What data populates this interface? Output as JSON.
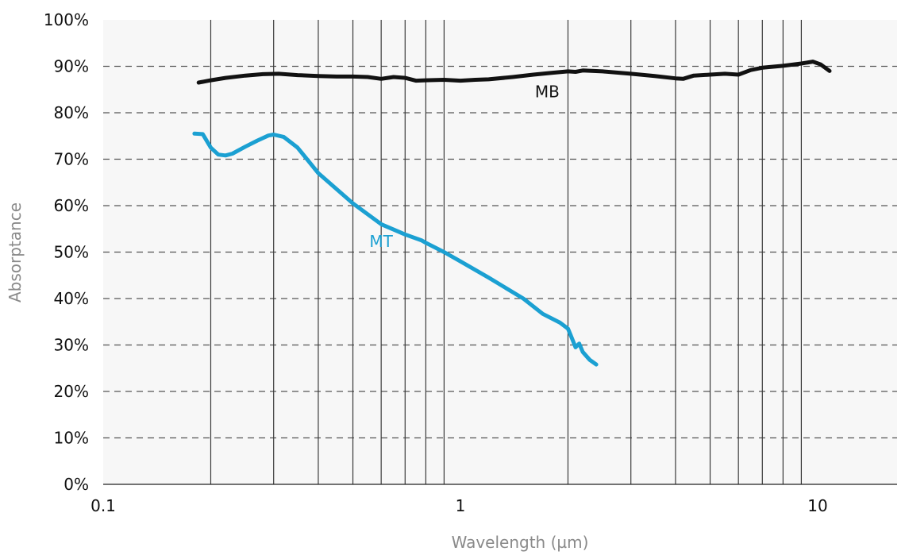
{
  "chart_data": {
    "type": "line",
    "title": "",
    "xlabel": "Wavelength (µm)",
    "ylabel": "Absorptance",
    "x_scale": "log",
    "xlim": [
      0.1,
      20
    ],
    "ylim": [
      0,
      100
    ],
    "x_ticks": [
      0.1,
      1,
      10
    ],
    "x_tick_labels": [
      "0.1",
      "1",
      "10"
    ],
    "y_ticks": [
      0,
      10,
      20,
      30,
      40,
      50,
      60,
      70,
      80,
      90,
      100
    ],
    "y_tick_labels": [
      "0%",
      "10%",
      "20%",
      "30%",
      "40%",
      "50%",
      "60%",
      "70%",
      "80%",
      "90%",
      "100%"
    ],
    "grid": {
      "horizontal": "dashed",
      "vertical_minor": "solid",
      "vertical_lines_at": [
        0.2,
        0.3,
        0.4,
        0.5,
        0.6,
        0.7,
        0.8,
        0.9,
        2,
        3,
        4,
        5,
        6,
        7,
        8,
        9
      ]
    },
    "plot_background": "#f7f7f7",
    "series": [
      {
        "name": "MB",
        "color": "#111111",
        "x": [
          0.185,
          0.2,
          0.22,
          0.25,
          0.28,
          0.31,
          0.35,
          0.4,
          0.45,
          0.5,
          0.55,
          0.6,
          0.65,
          0.7,
          0.75,
          0.8,
          0.9,
          1.0,
          1.1,
          1.2,
          1.4,
          1.6,
          1.8,
          2.0,
          2.1,
          2.2,
          2.5,
          2.8,
          3.0,
          3.5,
          4.0,
          4.2,
          4.5,
          5.0,
          5.5,
          6.0,
          6.5,
          7.0,
          8.0,
          9.0,
          9.7,
          10.2,
          10.8
        ],
        "values": [
          86.5,
          87.0,
          87.5,
          88.0,
          88.3,
          88.4,
          88.1,
          87.9,
          87.8,
          87.8,
          87.7,
          87.3,
          87.7,
          87.5,
          86.9,
          87.0,
          87.1,
          86.9,
          87.1,
          87.2,
          87.7,
          88.2,
          88.6,
          88.9,
          88.8,
          89.1,
          88.9,
          88.6,
          88.4,
          87.9,
          87.4,
          87.3,
          88.0,
          88.2,
          88.4,
          88.2,
          89.2,
          89.7,
          90.1,
          90.6,
          91.0,
          90.4,
          89.0
        ]
      },
      {
        "name": "MT",
        "color": "#1ba0d2",
        "x": [
          0.18,
          0.19,
          0.2,
          0.21,
          0.22,
          0.23,
          0.25,
          0.27,
          0.29,
          0.3,
          0.32,
          0.35,
          0.4,
          0.5,
          0.6,
          0.7,
          0.78,
          0.8,
          0.9,
          1.0,
          1.2,
          1.5,
          1.7,
          1.9,
          2.0,
          2.05,
          2.1,
          2.15,
          2.2,
          2.3,
          2.4
        ],
        "values": [
          75.5,
          75.4,
          72.5,
          71.0,
          70.8,
          71.2,
          72.7,
          74.0,
          75.1,
          75.3,
          74.8,
          72.5,
          67.0,
          60.5,
          56.0,
          53.8,
          52.5,
          52.0,
          50.0,
          48.0,
          44.5,
          40.0,
          36.7,
          34.8,
          33.5,
          31.5,
          29.5,
          30.3,
          28.5,
          26.8,
          25.8
        ]
      }
    ],
    "annotations": [
      {
        "text": "MB",
        "x": 1.75,
        "y": 84.5
      },
      {
        "text": "MT",
        "x": 0.6,
        "y": 52.3
      }
    ]
  }
}
